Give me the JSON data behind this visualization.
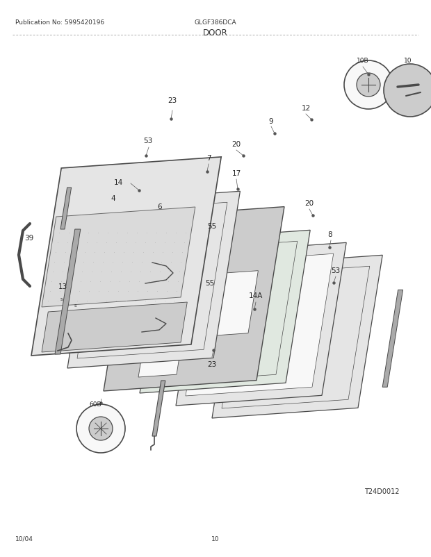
{
  "title_pub": "Publication No: 5995420196",
  "title_model": "GLGF386DCA",
  "title_section": "DOOR",
  "diagram_id": "T24D0012",
  "footer_left": "10/04",
  "footer_center": "10",
  "bg_color": "#ffffff",
  "line_color": "#4a4a4a",
  "text_color": "#333333",
  "gray_light": "#e5e5e5",
  "gray_med": "#cccccc",
  "gray_dark": "#aaaaaa",
  "white_fill": "#f8f8f8"
}
